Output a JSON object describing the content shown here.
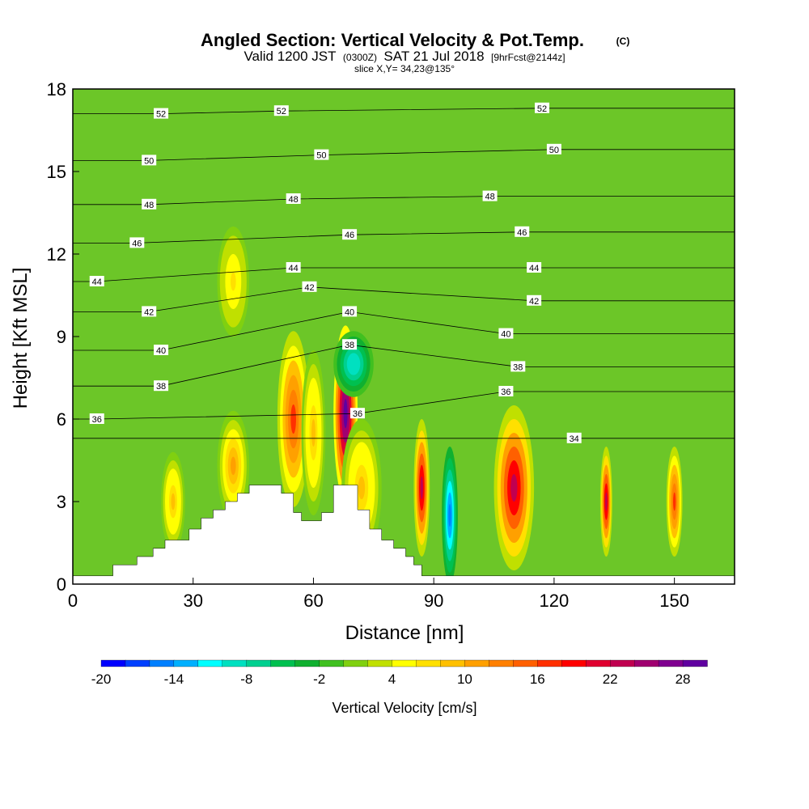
{
  "header": {
    "title": "Angled Section: Vertical Velocity & Pot.Temp.",
    "copyright": "(C)",
    "valid_prefix": "Valid 1200 JST",
    "valid_utc": "(0300Z)",
    "valid_date": "SAT 21 Jul 2018",
    "forecast": "[9hrFcst@2144z]",
    "slice": "slice X,Y= 34,23@135°"
  },
  "chart_data": {
    "type": "heatmap",
    "xlabel": "Distance [nm]",
    "ylabel": "Height [Kft MSL]",
    "xlim": [
      0,
      165
    ],
    "ylim": [
      0,
      18
    ],
    "xticks": [
      0,
      30,
      60,
      90,
      120,
      150
    ],
    "yticks": [
      0,
      3,
      6,
      9,
      12,
      15,
      18
    ],
    "terrain": [
      [
        0,
        0.3
      ],
      [
        10,
        0.3
      ],
      [
        10,
        0.7
      ],
      [
        16,
        0.7
      ],
      [
        16,
        1.0
      ],
      [
        20,
        1.0
      ],
      [
        20,
        1.3
      ],
      [
        23,
        1.3
      ],
      [
        23,
        1.6
      ],
      [
        29,
        1.6
      ],
      [
        29,
        2.0
      ],
      [
        32,
        2.0
      ],
      [
        32,
        2.4
      ],
      [
        35,
        2.4
      ],
      [
        35,
        2.7
      ],
      [
        38,
        2.7
      ],
      [
        38,
        3.0
      ],
      [
        41,
        3.0
      ],
      [
        41,
        3.3
      ],
      [
        44,
        3.3
      ],
      [
        44,
        3.6
      ],
      [
        52,
        3.6
      ],
      [
        52,
        3.3
      ],
      [
        55,
        3.3
      ],
      [
        55,
        2.6
      ],
      [
        57,
        2.6
      ],
      [
        57,
        2.3
      ],
      [
        62,
        2.3
      ],
      [
        62,
        2.6
      ],
      [
        65,
        2.6
      ],
      [
        65,
        3.6
      ],
      [
        71,
        3.6
      ],
      [
        71,
        2.7
      ],
      [
        74,
        2.7
      ],
      [
        74,
        2.0
      ],
      [
        77,
        2.0
      ],
      [
        77,
        1.6
      ],
      [
        80,
        1.6
      ],
      [
        80,
        1.3
      ],
      [
        83,
        1.3
      ],
      [
        83,
        1.0
      ],
      [
        85,
        1.0
      ],
      [
        85,
        0.7
      ],
      [
        87,
        0.7
      ],
      [
        87,
        0.3
      ],
      [
        165,
        0.3
      ]
    ],
    "velocity_cells": [
      {
        "x": 55,
        "y": 6.0,
        "wx": 4,
        "wy": 3.2,
        "w": 16
      },
      {
        "x": 60,
        "y": 5.5,
        "wx": 3,
        "wy": 3.0,
        "w": 8
      },
      {
        "x": 68,
        "y": 6.2,
        "wx": 3,
        "wy": 3.2,
        "w": 30
      },
      {
        "x": 72,
        "y": 3.5,
        "wx": 5,
        "wy": 2.5,
        "w": 8
      },
      {
        "x": 87,
        "y": 3.5,
        "wx": 2,
        "wy": 2.5,
        "w": 23
      },
      {
        "x": 94,
        "y": 2.5,
        "wx": 2,
        "wy": 2.5,
        "w": -16
      },
      {
        "x": 110,
        "y": 3.5,
        "wx": 5,
        "wy": 3.0,
        "w": 23
      },
      {
        "x": 133,
        "y": 3.0,
        "wx": 1.5,
        "wy": 2.0,
        "w": 22
      },
      {
        "x": 150,
        "y": 3.0,
        "wx": 2,
        "wy": 2.0,
        "w": 16
      },
      {
        "x": 40,
        "y": 4.3,
        "wx": 4,
        "wy": 2.0,
        "w": 10
      },
      {
        "x": 25,
        "y": 3.0,
        "wx": 3,
        "wy": 1.8,
        "w": 8
      },
      {
        "x": 40,
        "y": 11.0,
        "wx": 4,
        "wy": 2.0,
        "w": 6
      },
      {
        "x": 70,
        "y": 8.0,
        "wx": 5,
        "wy": 1.2,
        "w": -10
      }
    ],
    "contour_labels": [
      {
        "x": 22,
        "y": 17.1,
        "v": "52"
      },
      {
        "x": 52,
        "y": 17.2,
        "v": "52"
      },
      {
        "x": 117,
        "y": 17.3,
        "v": "52"
      },
      {
        "x": 19,
        "y": 15.4,
        "v": "50"
      },
      {
        "x": 62,
        "y": 15.6,
        "v": "50"
      },
      {
        "x": 120,
        "y": 15.8,
        "v": "50"
      },
      {
        "x": 19,
        "y": 13.8,
        "v": "48"
      },
      {
        "x": 55,
        "y": 14.0,
        "v": "48"
      },
      {
        "x": 104,
        "y": 14.1,
        "v": "48"
      },
      {
        "x": 16,
        "y": 12.4,
        "v": "46"
      },
      {
        "x": 69,
        "y": 12.7,
        "v": "46"
      },
      {
        "x": 112,
        "y": 12.8,
        "v": "46"
      },
      {
        "x": 6,
        "y": 11.0,
        "v": "44"
      },
      {
        "x": 55,
        "y": 11.5,
        "v": "44"
      },
      {
        "x": 115,
        "y": 11.5,
        "v": "44"
      },
      {
        "x": 19,
        "y": 9.9,
        "v": "42"
      },
      {
        "x": 59,
        "y": 10.8,
        "v": "42"
      },
      {
        "x": 115,
        "y": 10.3,
        "v": "42"
      },
      {
        "x": 22,
        "y": 8.5,
        "v": "40"
      },
      {
        "x": 69,
        "y": 9.9,
        "v": "40"
      },
      {
        "x": 108,
        "y": 9.1,
        "v": "40"
      },
      {
        "x": 22,
        "y": 7.2,
        "v": "38"
      },
      {
        "x": 69,
        "y": 8.7,
        "v": "38"
      },
      {
        "x": 111,
        "y": 7.9,
        "v": "38"
      },
      {
        "x": 6,
        "y": 6.0,
        "v": "36"
      },
      {
        "x": 71,
        "y": 6.2,
        "v": "36"
      },
      {
        "x": 108,
        "y": 7.0,
        "v": "36"
      },
      {
        "x": 125,
        "y": 5.3,
        "v": "34"
      }
    ],
    "colorbar": {
      "label": "Vertical Velocity [cm/s]",
      "min": -20,
      "step": 2,
      "ticks": [
        "-20",
        "-14",
        "-8",
        "-2",
        "4",
        "10",
        "16",
        "22",
        "28"
      ],
      "colors": [
        "#0000ff",
        "#0040ff",
        "#0080ff",
        "#00b0ff",
        "#00ffff",
        "#00e0c0",
        "#00d090",
        "#00c050",
        "#10b030",
        "#40c020",
        "#80d010",
        "#c0e000",
        "#ffff00",
        "#ffe000",
        "#ffc000",
        "#ffa000",
        "#ff8000",
        "#ff6000",
        "#ff3000",
        "#ff0000",
        "#e00030",
        "#c00050",
        "#a00070",
        "#800090",
        "#6000a0"
      ]
    }
  }
}
